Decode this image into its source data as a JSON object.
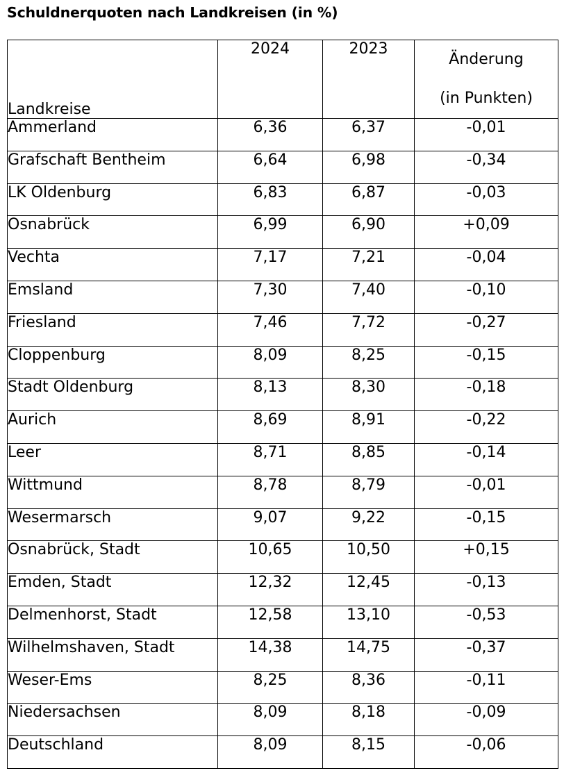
{
  "title": "Schuldnerquoten nach Landkreisen (in %)",
  "table": {
    "headers": {
      "name": "Landkreise",
      "year1": "2024",
      "year2": "2023",
      "change_line1": "Änderung",
      "change_line2": "(in Punkten)"
    },
    "rows": [
      {
        "name": "Ammerland",
        "v2024": "6,36",
        "v2023": "6,37",
        "change": "-0,01"
      },
      {
        "name": "Grafschaft Bentheim",
        "v2024": "6,64",
        "v2023": "6,98",
        "change": "-0,34"
      },
      {
        "name": "LK Oldenburg",
        "v2024": "6,83",
        "v2023": "6,87",
        "change": "-0,03"
      },
      {
        "name": "Osnabrück",
        "v2024": "6,99",
        "v2023": "6,90",
        "change": "+0,09"
      },
      {
        "name": "Vechta",
        "v2024": "7,17",
        "v2023": "7,21",
        "change": "-0,04"
      },
      {
        "name": "Emsland",
        "v2024": "7,30",
        "v2023": "7,40",
        "change": "-0,10"
      },
      {
        "name": "Friesland",
        "v2024": "7,46",
        "v2023": "7,72",
        "change": "-0,27"
      },
      {
        "name": "Cloppenburg",
        "v2024": "8,09",
        "v2023": "8,25",
        "change": "-0,15"
      },
      {
        "name": "Stadt Oldenburg",
        "v2024": "8,13",
        "v2023": "8,30",
        "change": "-0,18"
      },
      {
        "name": "Aurich",
        "v2024": "8,69",
        "v2023": "8,91",
        "change": "-0,22"
      },
      {
        "name": "Leer",
        "v2024": "8,71",
        "v2023": "8,85",
        "change": "-0,14"
      },
      {
        "name": "Wittmund",
        "v2024": "8,78",
        "v2023": "8,79",
        "change": "-0,01"
      },
      {
        "name": "Wesermarsch",
        "v2024": "9,07",
        "v2023": "9,22",
        "change": "-0,15"
      },
      {
        "name": "Osnabrück, Stadt",
        "v2024": "10,65",
        "v2023": "10,50",
        "change": "+0,15"
      },
      {
        "name": "Emden, Stadt",
        "v2024": "12,32",
        "v2023": "12,45",
        "change": "-0,13"
      },
      {
        "name": "Delmenhorst, Stadt",
        "v2024": "12,58",
        "v2023": "13,10",
        "change": "-0,53"
      },
      {
        "name": "Wilhelmshaven, Stadt",
        "v2024": "14,38",
        "v2023": "14,75",
        "change": "-0,37"
      },
      {
        "name": "Weser-Ems",
        "v2024": "8,25",
        "v2023": "8,36",
        "change": "-0,11"
      },
      {
        "name": "Niedersachsen",
        "v2024": "8,09",
        "v2023": "8,18",
        "change": "-0,09"
      },
      {
        "name": "Deutschland",
        "v2024": "8,09",
        "v2023": "8,15",
        "change": "-0,06"
      }
    ]
  }
}
